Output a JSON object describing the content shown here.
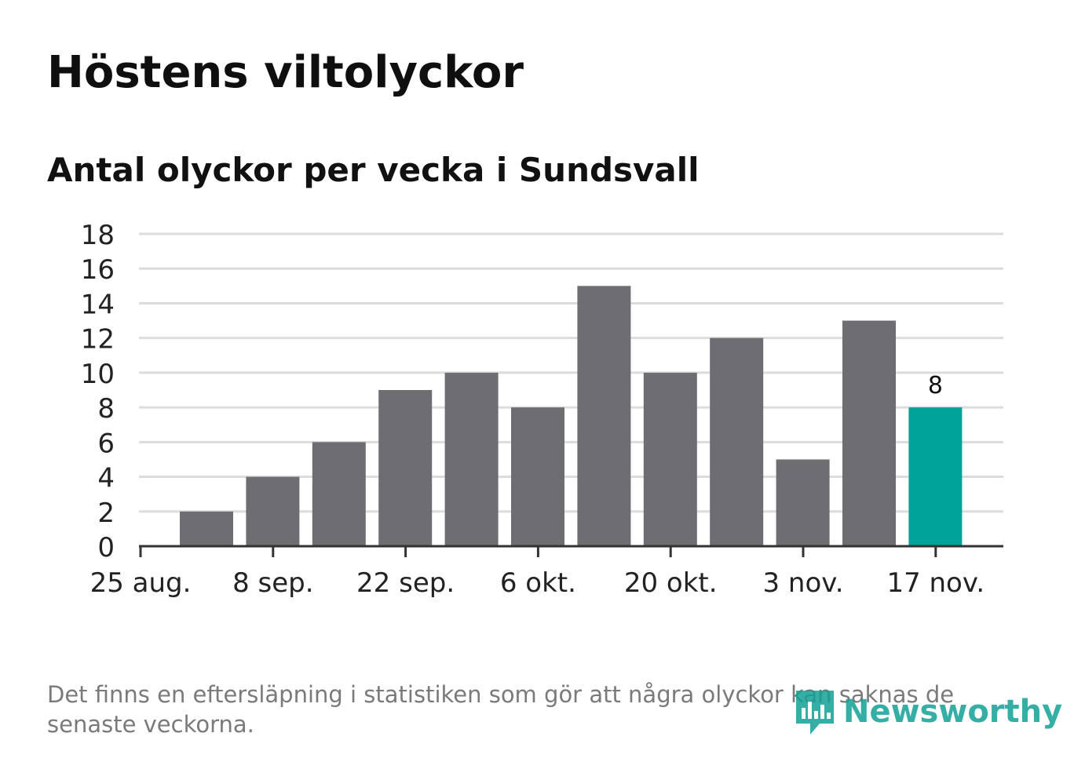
{
  "header": {
    "title": "Höstens viltolyckor",
    "subtitle": "Antal olyckor per vecka i Sundsvall"
  },
  "footer": {
    "note": "Det finns en eftersläpning i statistiken som gör att några olyckor kan saknas de senaste veckorna.",
    "logo_text": "Newsworthy"
  },
  "colors": {
    "bar": "#6e6d72",
    "highlight": "#00a39a",
    "grid": "#dcdcdc",
    "axis": "#333333",
    "logo": "#12a096"
  },
  "chart_data": {
    "type": "bar",
    "title": "Antal olyckor per vecka i Sundsvall",
    "xlabel": "",
    "ylabel": "",
    "ylim": [
      0,
      18
    ],
    "yticks": [
      0,
      2,
      4,
      6,
      8,
      10,
      12,
      14,
      16,
      18
    ],
    "grid": true,
    "x_tick_labels": [
      "25 aug.",
      "8 sep.",
      "22 sep.",
      "6 okt.",
      "20 okt.",
      "3 nov.",
      "17 nov."
    ],
    "values": [
      2,
      4,
      6,
      9,
      10,
      8,
      15,
      10,
      12,
      5,
      13,
      8
    ],
    "highlight_index": 11,
    "data_labels": [
      {
        "index": 11,
        "text": "8"
      }
    ]
  }
}
